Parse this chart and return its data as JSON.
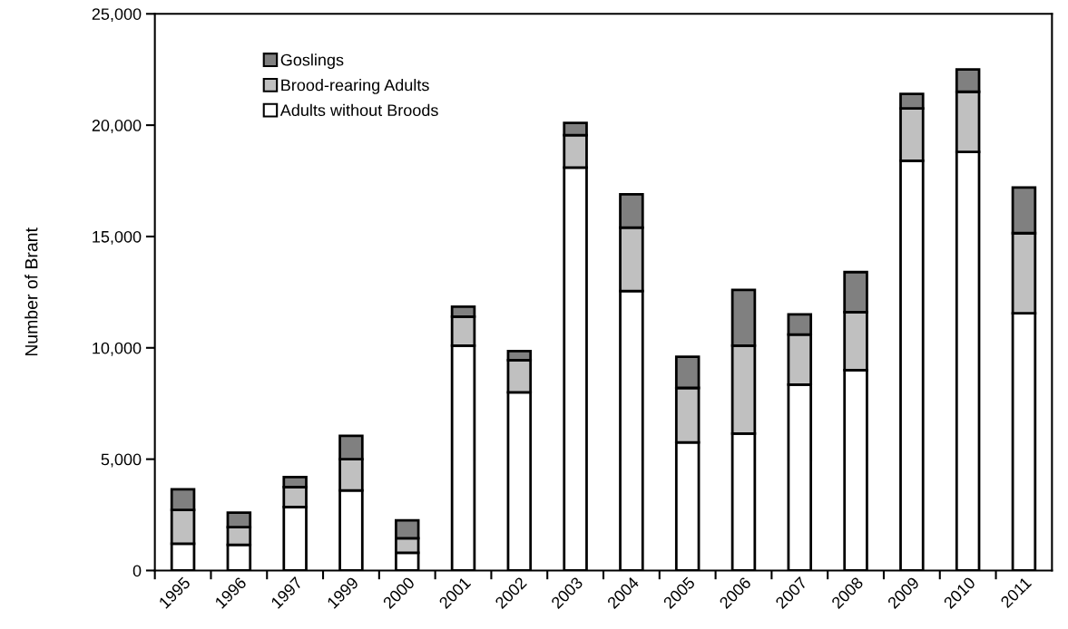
{
  "chart_data": {
    "type": "bar",
    "stacked": true,
    "ylabel": "Number of Brant",
    "categories": [
      "1995",
      "1996",
      "1997",
      "1999",
      "2000",
      "2001",
      "2002",
      "2003",
      "2004",
      "2005",
      "2006",
      "2007",
      "2008",
      "2009",
      "2010",
      "2011"
    ],
    "series": [
      {
        "name": "Adults without Broods",
        "color": "#ffffff",
        "values": [
          1200,
          1150,
          2850,
          3600,
          800,
          10100,
          8000,
          18100,
          12550,
          5750,
          6150,
          8350,
          9000,
          18400,
          18800,
          11550
        ]
      },
      {
        "name": "Brood-rearing Adults",
        "color": "#c0c0c0",
        "values": [
          1520,
          800,
          900,
          1400,
          650,
          1300,
          1450,
          1450,
          2850,
          2450,
          3950,
          2250,
          2600,
          2350,
          2700,
          3600
        ]
      },
      {
        "name": "Goslings",
        "color": "#808080",
        "values": [
          930,
          650,
          450,
          1050,
          800,
          450,
          400,
          550,
          1500,
          1400,
          2500,
          900,
          1800,
          650,
          1000,
          2050
        ]
      }
    ],
    "ylim": [
      0,
      25000
    ],
    "yticks": [
      {
        "value": 0,
        "label": "0"
      },
      {
        "value": 5000,
        "label": "5,000"
      },
      {
        "value": 10000,
        "label": "10,000"
      },
      {
        "value": 15000,
        "label": "15,000"
      },
      {
        "value": 20000,
        "label": "20,000"
      },
      {
        "value": 25000,
        "label": "25,000"
      }
    ],
    "grid": false,
    "legend": "top left"
  }
}
